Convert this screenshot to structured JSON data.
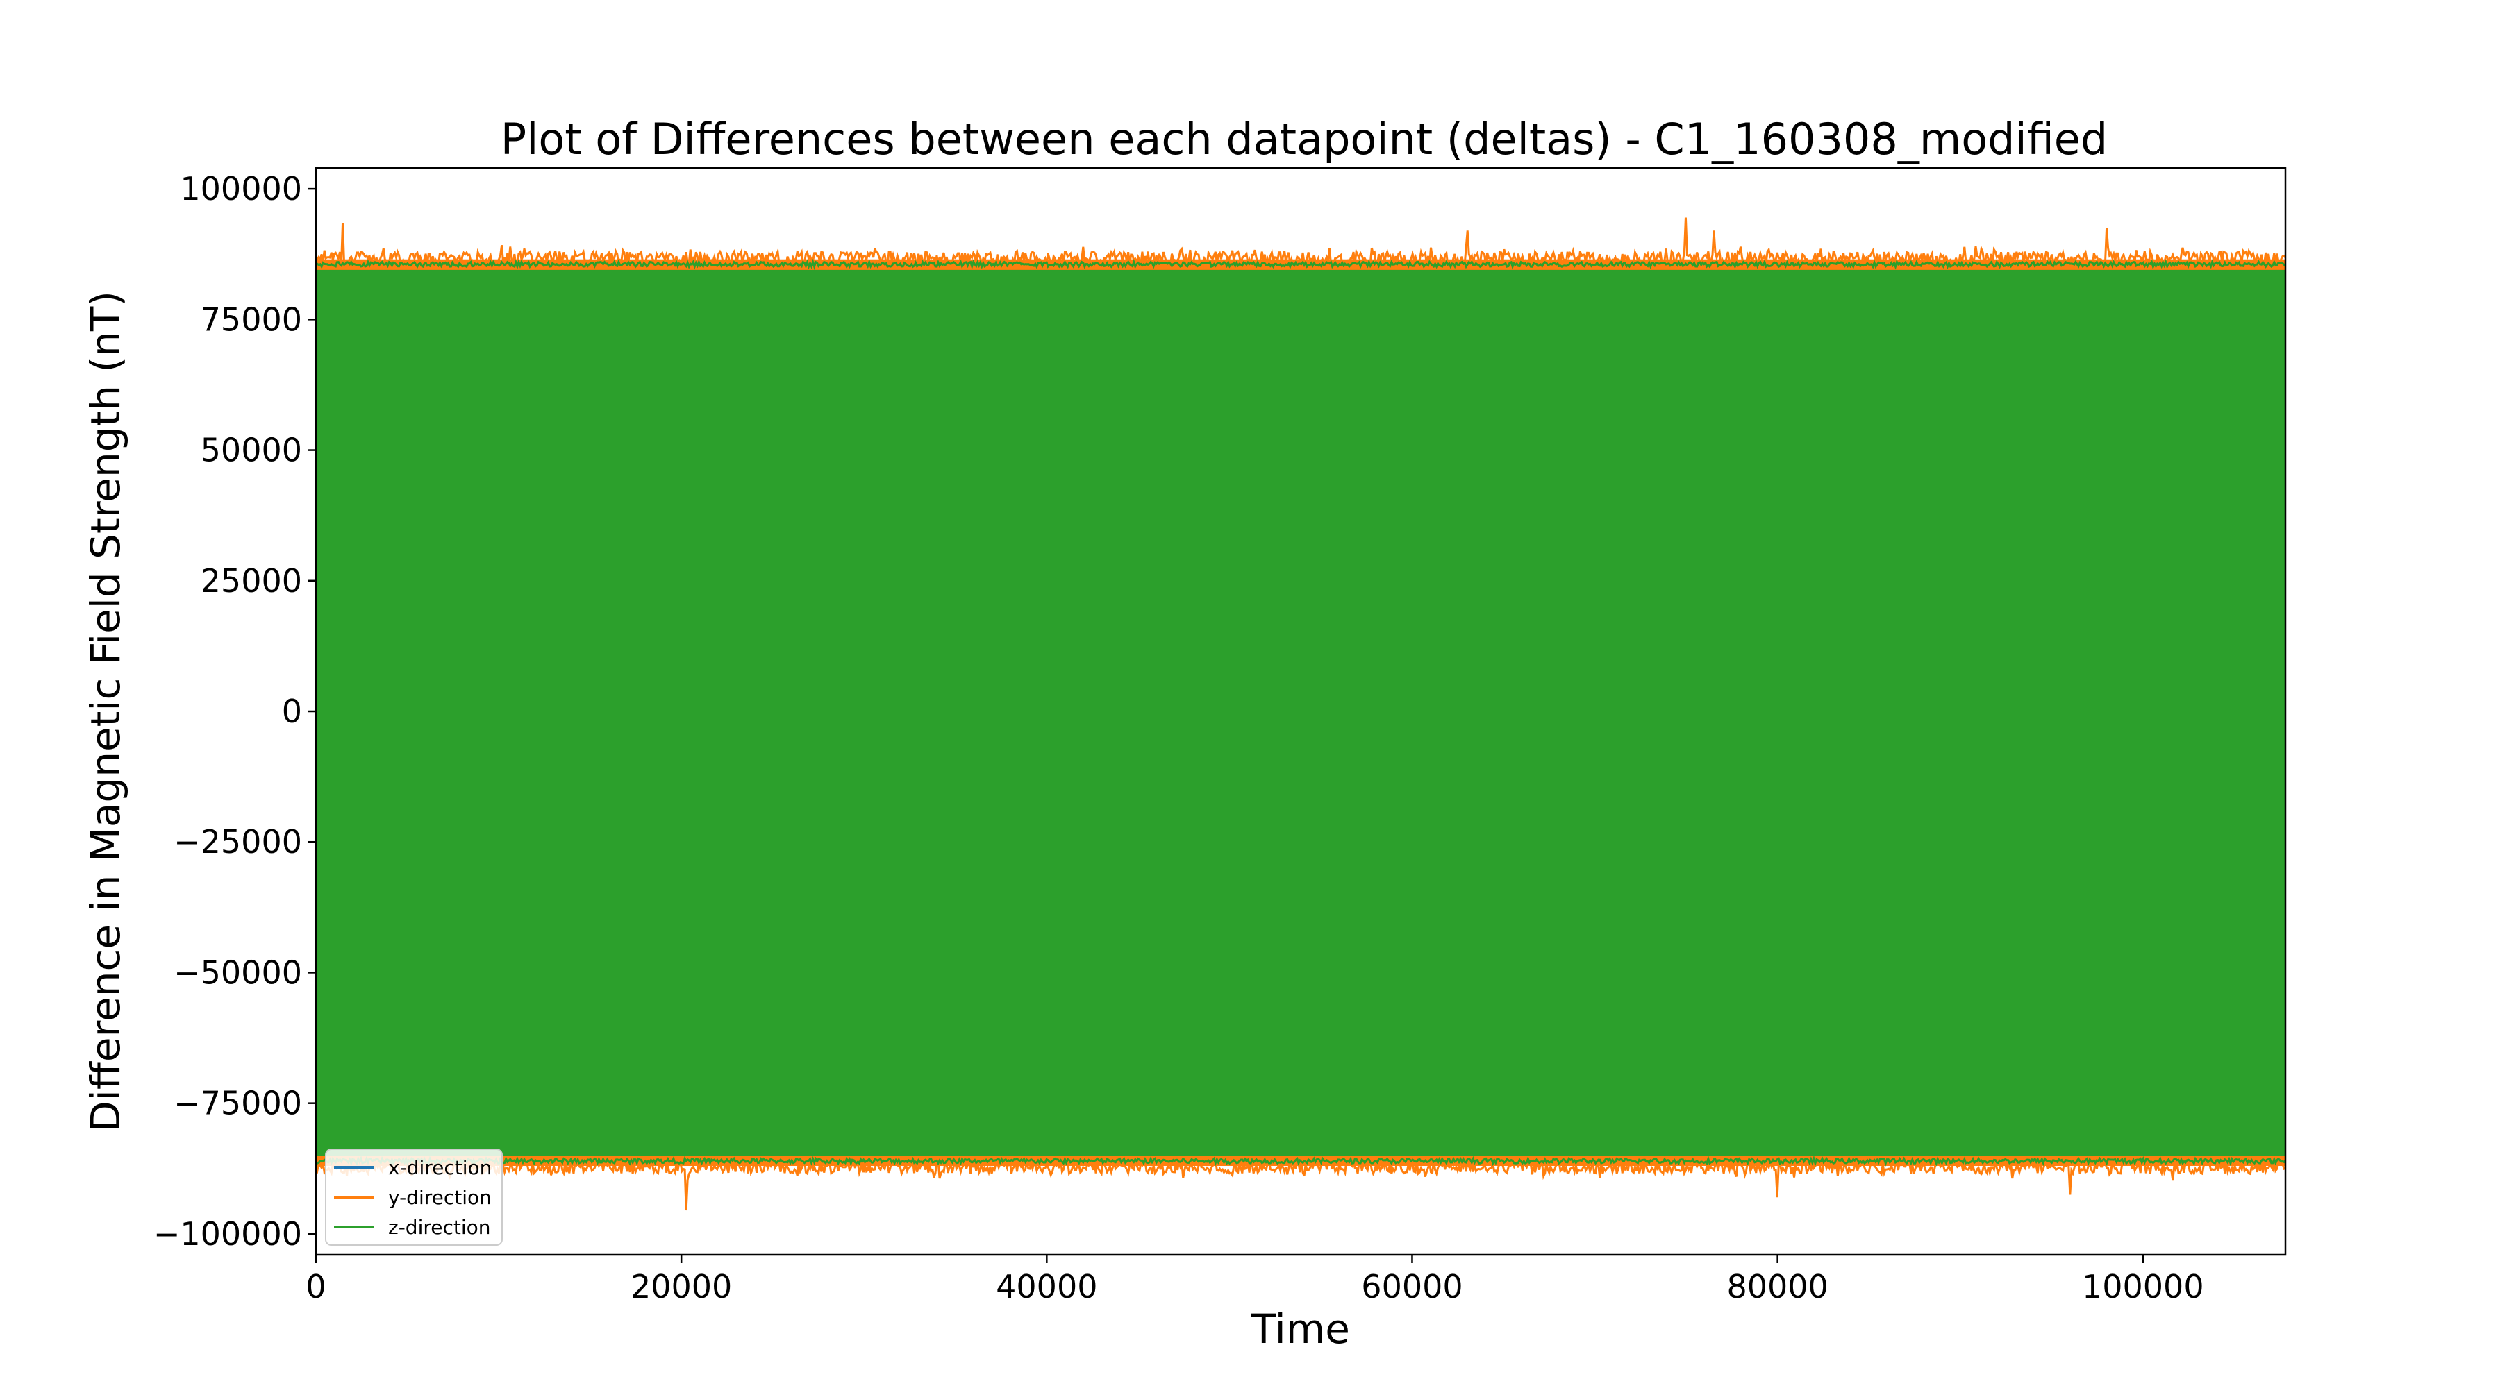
{
  "chart_data": {
    "type": "line",
    "title": "Plot of Differences between each datapoint (deltas) - C1_160308_modified",
    "xlabel": "Time",
    "ylabel": "Difference in Magnetic Field Strength (nT)",
    "xlim": [
      0,
      107800
    ],
    "ylim": [
      -104000,
      104000
    ],
    "xticks": [
      0,
      20000,
      40000,
      60000,
      80000,
      100000
    ],
    "xtick_labels": [
      "0",
      "20000",
      "40000",
      "60000",
      "80000",
      "100000"
    ],
    "yticks": [
      100000,
      75000,
      50000,
      25000,
      0,
      -25000,
      -50000,
      -75000,
      -100000
    ],
    "ytick_labels": [
      "100000",
      "75000",
      "50000",
      "25000",
      "0",
      "−25000",
      "−50000",
      "−75000",
      "−100000"
    ],
    "grid": false,
    "legend_position": "lower-left",
    "series": [
      {
        "name": "x-direction",
        "color": "#1f77b4",
        "envelope": {
          "upper": 86000,
          "lower": -86000
        },
        "note_visible": "hidden beneath z-direction"
      },
      {
        "name": "y-direction",
        "color": "#ff7f0e",
        "envelope": {
          "upper": 88000,
          "lower": -88500
        },
        "peaks": [
          {
            "x": 1500,
            "y": 93500
          },
          {
            "x": 63000,
            "y": 92000
          },
          {
            "x": 75000,
            "y": 94500
          },
          {
            "x": 76500,
            "y": 92000
          },
          {
            "x": 98000,
            "y": 92500
          },
          {
            "x": 20300,
            "y": -95500
          },
          {
            "x": 80000,
            "y": -93000
          },
          {
            "x": 96000,
            "y": -92500
          }
        ]
      },
      {
        "name": "z-direction",
        "color": "#2ca02c",
        "envelope": {
          "upper": 86000,
          "lower": -86500
        }
      }
    ]
  }
}
